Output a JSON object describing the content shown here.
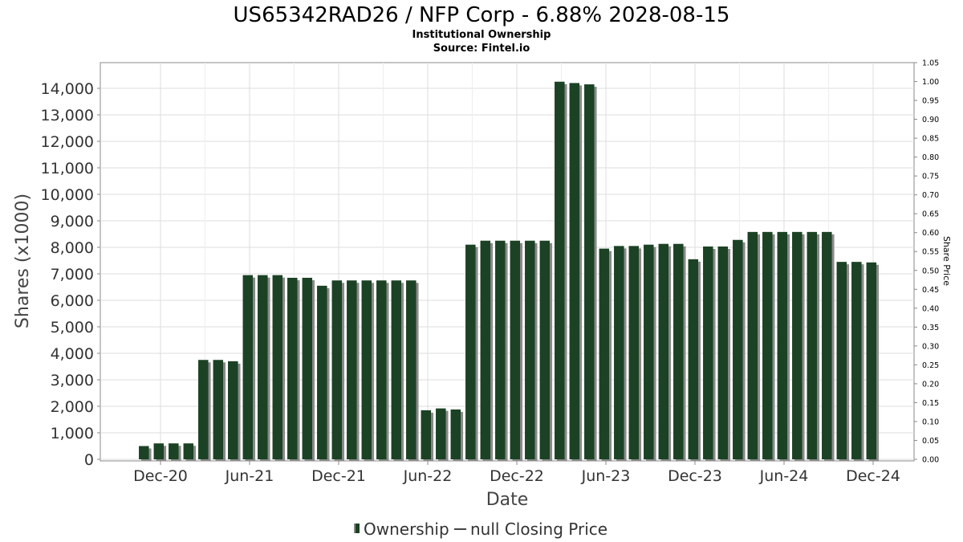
{
  "chart_data": {
    "type": "bar",
    "title": "US65342RAD26 / NFP Corp - 6.88% 2028-08-15",
    "subtitle": "Institutional Ownership",
    "source": "Source: Fintel.io",
    "xlabel": "Date",
    "ylabel": "Shares (x1000)",
    "y2label": "Share Price",
    "ylim": [
      0,
      14500
    ],
    "y2lim": [
      0,
      1.05
    ],
    "y_ticks": [
      "0",
      "1,000",
      "2,000",
      "3,000",
      "4,000",
      "5,000",
      "6,000",
      "7,000",
      "8,000",
      "9,000",
      "10,000",
      "11,000",
      "12,000",
      "13,000",
      "14,000"
    ],
    "y2_ticks": [
      "0.00",
      "0.05",
      "0.10",
      "0.15",
      "0.20",
      "0.25",
      "0.30",
      "0.35",
      "0.40",
      "0.45",
      "0.50",
      "0.55",
      "0.60",
      "0.65",
      "0.70",
      "0.75",
      "0.80",
      "0.85",
      "0.90",
      "0.95",
      "1.00",
      "1.05"
    ],
    "x_ticks": [
      "Dec-20",
      "Jun-21",
      "Dec-21",
      "Jun-22",
      "Dec-22",
      "Jun-23",
      "Dec-23",
      "Jun-24",
      "Dec-24"
    ],
    "grid": true,
    "legend_placement": "bottom-center",
    "colors": {
      "bar": "#1b4224",
      "bar_shadow": "#8a8a8a",
      "grid": "#dddddd",
      "frame": "#888888"
    },
    "series": [
      {
        "name": "Ownership",
        "values": [
          500,
          600,
          600,
          600,
          3750,
          3750,
          3700,
          6950,
          6950,
          6950,
          6850,
          6850,
          6550,
          6750,
          6750,
          6750,
          6750,
          6750,
          6750,
          1850,
          1920,
          1880,
          8100,
          8250,
          8250,
          8250,
          8250,
          8250,
          14250,
          14200,
          14150,
          7950,
          8050,
          8050,
          8100,
          8130,
          8130,
          7550,
          8030,
          8030,
          8280,
          8580,
          8580,
          8580,
          8580,
          8580,
          8580,
          7450,
          7450,
          7430
        ]
      },
      {
        "name": "null Closing Price",
        "values": []
      }
    ]
  },
  "legend": {
    "ownership": "Ownership",
    "price": "null Closing Price"
  }
}
